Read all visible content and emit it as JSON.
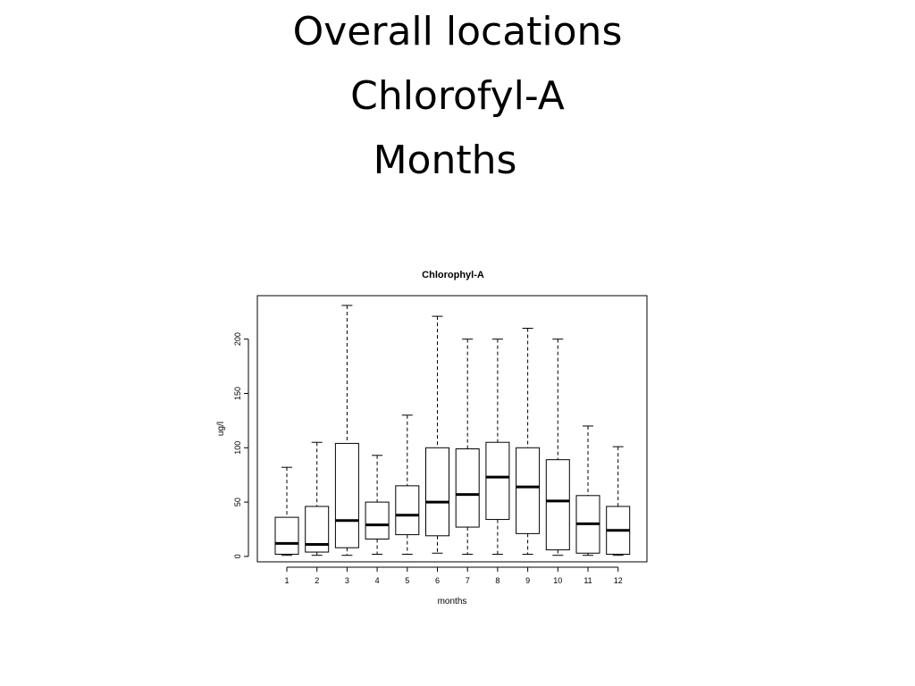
{
  "slide": {
    "title_lines": [
      "Overall locations",
      "Chlorofyl-A",
      "Months"
    ]
  },
  "chart_data": {
    "type": "boxplot",
    "title": "Chlorophyl-A",
    "xlabel": "months",
    "ylabel": "ug/l",
    "categories": [
      "1",
      "2",
      "3",
      "4",
      "5",
      "6",
      "7",
      "8",
      "9",
      "10",
      "11",
      "12"
    ],
    "ylim": [
      -5,
      240
    ],
    "yticks": [
      0,
      50,
      100,
      150,
      200
    ],
    "boxes": [
      {
        "month": "1",
        "min": 1,
        "q1": 2,
        "median": 12,
        "q3": 36,
        "max": 82
      },
      {
        "month": "2",
        "min": 1,
        "q1": 4,
        "median": 11,
        "q3": 46,
        "max": 105
      },
      {
        "month": "3",
        "min": 1,
        "q1": 8,
        "median": 33,
        "q3": 104,
        "max": 231
      },
      {
        "month": "4",
        "min": 2,
        "q1": 16,
        "median": 29,
        "q3": 50,
        "max": 93
      },
      {
        "month": "5",
        "min": 2,
        "q1": 20,
        "median": 38,
        "q3": 65,
        "max": 130
      },
      {
        "month": "6",
        "min": 3,
        "q1": 19,
        "median": 50,
        "q3": 100,
        "max": 221
      },
      {
        "month": "7",
        "min": 2,
        "q1": 27,
        "median": 57,
        "q3": 99,
        "max": 200
      },
      {
        "month": "8",
        "min": 2,
        "q1": 34,
        "median": 73,
        "q3": 105,
        "max": 200
      },
      {
        "month": "9",
        "min": 2,
        "q1": 21,
        "median": 64,
        "q3": 100,
        "max": 210
      },
      {
        "month": "10",
        "min": 1,
        "q1": 6,
        "median": 51,
        "q3": 89,
        "max": 200
      },
      {
        "month": "11",
        "min": 1,
        "q1": 3,
        "median": 30,
        "q3": 56,
        "max": 120
      },
      {
        "month": "12",
        "min": 1,
        "q1": 2,
        "median": 24,
        "q3": 46,
        "max": 101
      }
    ],
    "grid": false,
    "legend": "none"
  }
}
